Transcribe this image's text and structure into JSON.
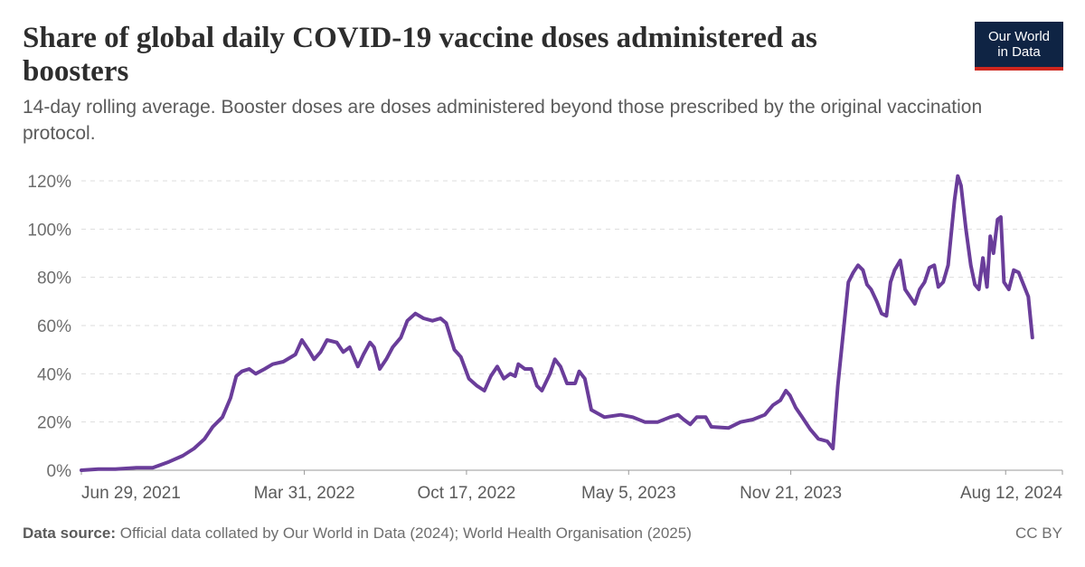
{
  "header": {
    "title": "Share of global daily COVID-19 vaccine doses administered as boosters",
    "subtitle": "14-day rolling average. Booster doses are doses administered beyond those prescribed by the original vaccination protocol."
  },
  "logo": {
    "line1": "Our World",
    "line2": "in Data"
  },
  "footer": {
    "source_label": "Data source:",
    "source_text": "Official data collated by Our World in Data (2024); World Health Organisation (2025)",
    "license": "CC BY"
  },
  "colors": {
    "line": "#6a3d9a",
    "grid": "#dddddd",
    "axis": "#999999"
  },
  "chart_data": {
    "type": "line",
    "title": "Share of global daily COVID-19 vaccine doses administered as boosters",
    "xlabel": "",
    "ylabel": "",
    "x_ticks": [
      "Jun 29, 2021",
      "Mar 31, 2022",
      "Oct 17, 2022",
      "May 5, 2023",
      "Nov 21, 2023",
      "Aug 12, 2024"
    ],
    "y_ticks": [
      "0%",
      "20%",
      "40%",
      "60%",
      "80%",
      "100%",
      "120%"
    ],
    "ylim": [
      0,
      120
    ],
    "xlim": [
      "2021-06-29",
      "2024-10-21"
    ],
    "grid": "horizontal dashed",
    "series": [
      {
        "name": "",
        "points": [
          [
            "2021-06-29",
            0
          ],
          [
            "2021-07-20",
            0.5
          ],
          [
            "2021-08-10",
            0.5
          ],
          [
            "2021-09-05",
            1
          ],
          [
            "2021-09-25",
            1
          ],
          [
            "2021-10-15",
            3.5
          ],
          [
            "2021-11-01",
            6
          ],
          [
            "2021-11-15",
            9
          ],
          [
            "2021-11-28",
            13
          ],
          [
            "2021-12-08",
            18
          ],
          [
            "2021-12-20",
            22
          ],
          [
            "2021-12-30",
            30
          ],
          [
            "2022-01-06",
            39
          ],
          [
            "2022-01-13",
            41
          ],
          [
            "2022-01-22",
            42
          ],
          [
            "2022-01-30",
            40
          ],
          [
            "2022-02-10",
            42
          ],
          [
            "2022-02-20",
            44
          ],
          [
            "2022-03-05",
            45
          ],
          [
            "2022-03-20",
            48
          ],
          [
            "2022-03-28",
            54
          ],
          [
            "2022-04-05",
            50
          ],
          [
            "2022-04-12",
            46
          ],
          [
            "2022-04-20",
            49
          ],
          [
            "2022-04-28",
            54
          ],
          [
            "2022-05-10",
            53
          ],
          [
            "2022-05-18",
            49
          ],
          [
            "2022-05-26",
            51
          ],
          [
            "2022-06-05",
            43
          ],
          [
            "2022-06-12",
            48
          ],
          [
            "2022-06-20",
            53
          ],
          [
            "2022-06-25",
            51
          ],
          [
            "2022-07-02",
            42
          ],
          [
            "2022-07-10",
            46
          ],
          [
            "2022-07-18",
            51
          ],
          [
            "2022-07-28",
            55
          ],
          [
            "2022-08-05",
            62
          ],
          [
            "2022-08-15",
            65
          ],
          [
            "2022-08-25",
            63
          ],
          [
            "2022-09-05",
            62
          ],
          [
            "2022-09-15",
            63
          ],
          [
            "2022-09-22",
            61
          ],
          [
            "2022-10-02",
            50
          ],
          [
            "2022-10-10",
            47
          ],
          [
            "2022-10-20",
            38
          ],
          [
            "2022-10-30",
            35
          ],
          [
            "2022-11-08",
            33
          ],
          [
            "2022-11-16",
            39
          ],
          [
            "2022-11-24",
            43
          ],
          [
            "2022-12-02",
            38
          ],
          [
            "2022-12-10",
            40
          ],
          [
            "2022-12-16",
            39
          ],
          [
            "2022-12-20",
            44
          ],
          [
            "2022-12-28",
            42
          ],
          [
            "2023-01-05",
            42
          ],
          [
            "2023-01-12",
            35
          ],
          [
            "2023-01-18",
            33
          ],
          [
            "2023-01-28",
            40
          ],
          [
            "2023-02-03",
            46
          ],
          [
            "2023-02-10",
            43
          ],
          [
            "2023-02-18",
            36
          ],
          [
            "2023-02-28",
            36
          ],
          [
            "2023-03-05",
            41
          ],
          [
            "2023-03-12",
            38
          ],
          [
            "2023-03-20",
            25
          ],
          [
            "2023-04-05",
            22
          ],
          [
            "2023-04-25",
            23
          ],
          [
            "2023-05-10",
            22
          ],
          [
            "2023-05-25",
            20
          ],
          [
            "2023-06-10",
            20
          ],
          [
            "2023-06-25",
            22
          ],
          [
            "2023-07-05",
            23
          ],
          [
            "2023-07-12",
            21
          ],
          [
            "2023-07-20",
            19
          ],
          [
            "2023-07-28",
            22
          ],
          [
            "2023-08-08",
            22
          ],
          [
            "2023-08-15",
            18
          ],
          [
            "2023-09-05",
            17.5
          ],
          [
            "2023-09-20",
            20
          ],
          [
            "2023-10-05",
            21
          ],
          [
            "2023-10-20",
            23
          ],
          [
            "2023-10-30",
            27
          ],
          [
            "2023-11-08",
            29
          ],
          [
            "2023-11-15",
            33
          ],
          [
            "2023-11-20",
            31
          ],
          [
            "2023-11-27",
            26
          ],
          [
            "2023-12-05",
            22
          ],
          [
            "2023-12-15",
            17
          ],
          [
            "2023-12-25",
            13
          ],
          [
            "2024-01-05",
            12
          ],
          [
            "2024-01-12",
            9
          ],
          [
            "2024-01-18",
            35
          ],
          [
            "2024-01-25",
            58
          ],
          [
            "2024-01-31",
            78
          ],
          [
            "2024-02-06",
            82
          ],
          [
            "2024-02-12",
            85
          ],
          [
            "2024-02-18",
            83
          ],
          [
            "2024-02-23",
            77
          ],
          [
            "2024-02-28",
            75
          ],
          [
            "2024-03-06",
            70
          ],
          [
            "2024-03-12",
            65
          ],
          [
            "2024-03-18",
            64
          ],
          [
            "2024-03-23",
            78
          ],
          [
            "2024-03-28",
            83
          ],
          [
            "2024-04-04",
            87
          ],
          [
            "2024-04-10",
            75
          ],
          [
            "2024-04-16",
            72
          ],
          [
            "2024-04-22",
            69
          ],
          [
            "2024-04-28",
            75
          ],
          [
            "2024-05-04",
            78
          ],
          [
            "2024-05-10",
            84
          ],
          [
            "2024-05-16",
            85
          ],
          [
            "2024-05-21",
            76
          ],
          [
            "2024-05-27",
            78
          ],
          [
            "2024-06-02",
            85
          ],
          [
            "2024-06-10",
            112
          ],
          [
            "2024-06-14",
            122
          ],
          [
            "2024-06-18",
            118
          ],
          [
            "2024-06-24",
            100
          ],
          [
            "2024-06-30",
            85
          ],
          [
            "2024-07-05",
            77
          ],
          [
            "2024-07-10",
            75
          ],
          [
            "2024-07-15",
            88
          ],
          [
            "2024-07-20",
            76
          ],
          [
            "2024-07-24",
            97
          ],
          [
            "2024-07-28",
            90
          ],
          [
            "2024-08-02",
            104
          ],
          [
            "2024-08-06",
            105
          ],
          [
            "2024-08-10",
            78
          ],
          [
            "2024-08-16",
            75
          ],
          [
            "2024-08-22",
            83
          ],
          [
            "2024-08-28",
            82
          ],
          [
            "2024-09-03",
            77
          ],
          [
            "2024-09-09",
            72
          ],
          [
            "2024-09-14",
            55
          ]
        ]
      }
    ]
  }
}
